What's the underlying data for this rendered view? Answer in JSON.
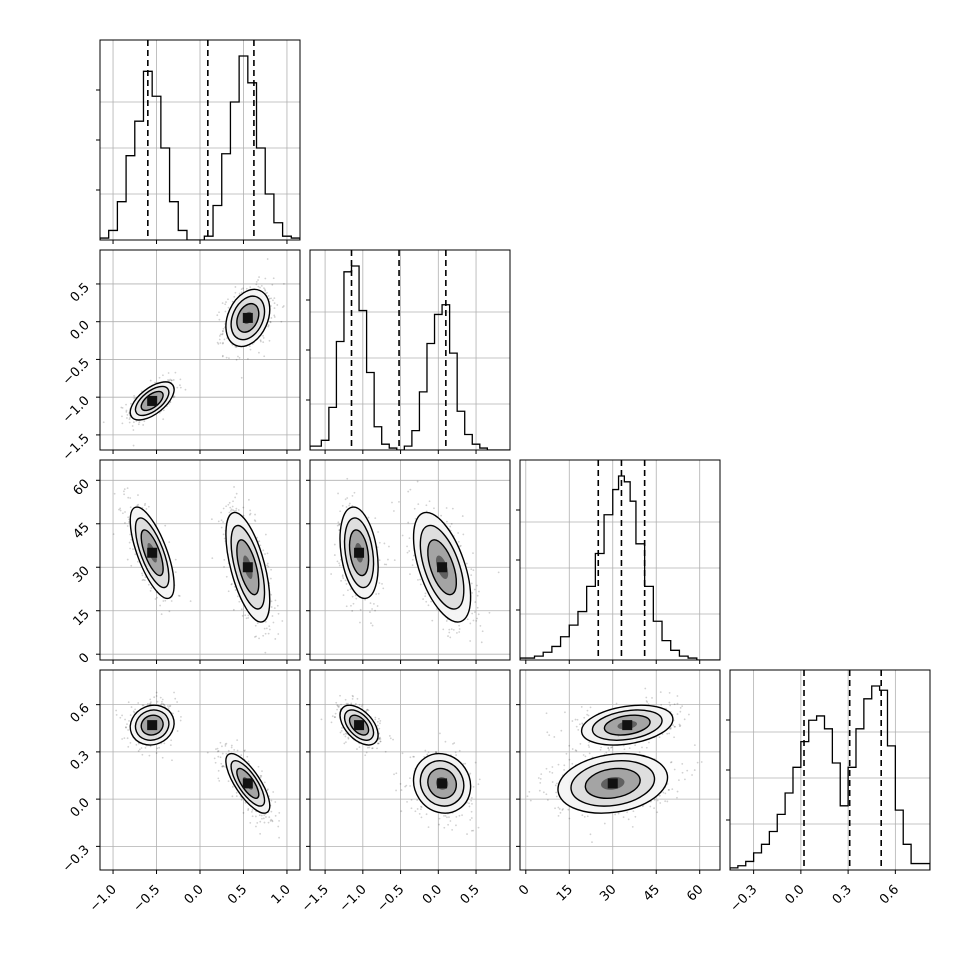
{
  "chart_data": {
    "type": "corner",
    "grid": true,
    "params": [
      {
        "id": "p1",
        "range": [
          -1.15,
          1.15
        ],
        "ticks": [
          -1.0,
          -0.5,
          0.0,
          0.5,
          1.0
        ],
        "tick_labels": [
          "−1.0",
          "−0.5",
          "0.0",
          "0.5",
          "1.0"
        ],
        "quantiles": [
          -0.6,
          0.09,
          0.62
        ],
        "hist_edges": [
          -1.15,
          -1.05,
          -0.95,
          -0.85,
          -0.75,
          -0.65,
          -0.6,
          -0.55,
          -0.45,
          -0.35,
          -0.25,
          -0.15,
          -0.05,
          0.05,
          0.15,
          0.25,
          0.35,
          0.45,
          0.55,
          0.62,
          0.65,
          0.75,
          0.85,
          0.95,
          1.05,
          1.15
        ],
        "hist_counts": [
          0.01,
          0.05,
          0.2,
          0.44,
          0.62,
          0.88,
          0.88,
          0.75,
          0.48,
          0.2,
          0.05,
          0.0,
          0.0,
          0.02,
          0.18,
          0.45,
          0.72,
          0.96,
          0.82,
          0.82,
          0.48,
          0.24,
          0.09,
          0.02,
          0.01
        ]
      },
      {
        "id": "p2",
        "range": [
          -1.7,
          0.95
        ],
        "ticks": [
          -1.5,
          -1.0,
          -0.5,
          0.0,
          0.5
        ],
        "tick_labels": [
          "−1.5",
          "−1.0",
          "−0.5",
          "0.0",
          "0.5"
        ],
        "quantiles": [
          -1.15,
          -0.52,
          0.1
        ],
        "hist_edges": [
          -1.7,
          -1.55,
          -1.45,
          -1.35,
          -1.25,
          -1.15,
          -1.05,
          -0.95,
          -0.85,
          -0.75,
          -0.65,
          -0.55,
          -0.45,
          -0.35,
          -0.25,
          -0.15,
          -0.05,
          0.05,
          0.15,
          0.25,
          0.35,
          0.45,
          0.55,
          0.65,
          0.8,
          0.95
        ],
        "hist_counts": [
          0.02,
          0.05,
          0.22,
          0.56,
          0.92,
          0.95,
          0.72,
          0.4,
          0.12,
          0.03,
          0.01,
          0.0,
          0.02,
          0.1,
          0.3,
          0.55,
          0.7,
          0.75,
          0.5,
          0.2,
          0.08,
          0.03,
          0.01,
          0.0,
          0.0
        ]
      },
      {
        "id": "p3",
        "range": [
          -2,
          67
        ],
        "ticks": [
          0,
          15,
          30,
          45,
          60
        ],
        "tick_labels": [
          "0",
          "15",
          "30",
          "45",
          "60"
        ],
        "quantiles": [
          25,
          33,
          41
        ],
        "hist_edges": [
          -2,
          3,
          6,
          9,
          12,
          15,
          18,
          21,
          24,
          27,
          30,
          32,
          34,
          36,
          38,
          41,
          44,
          47,
          50,
          53,
          56,
          59,
          62,
          67
        ],
        "hist_counts": [
          0.01,
          0.02,
          0.04,
          0.07,
          0.12,
          0.18,
          0.25,
          0.38,
          0.55,
          0.75,
          0.88,
          0.95,
          0.92,
          0.82,
          0.6,
          0.38,
          0.2,
          0.1,
          0.05,
          0.02,
          0.01,
          0.0,
          0.0
        ]
      },
      {
        "id": "p4",
        "range": [
          -0.45,
          0.82
        ],
        "ticks": [
          -0.3,
          0.0,
          0.3,
          0.6
        ],
        "tick_labels": [
          "−0.3",
          "0.0",
          "0.3",
          "0.6"
        ],
        "quantiles": [
          0.02,
          0.31,
          0.51
        ],
        "hist_edges": [
          -0.45,
          -0.4,
          -0.35,
          -0.3,
          -0.25,
          -0.2,
          -0.15,
          -0.1,
          -0.05,
          0.0,
          0.05,
          0.1,
          0.15,
          0.2,
          0.25,
          0.3,
          0.35,
          0.4,
          0.45,
          0.5,
          0.55,
          0.6,
          0.65,
          0.7,
          0.82
        ],
        "hist_counts": [
          0.01,
          0.02,
          0.04,
          0.08,
          0.12,
          0.18,
          0.26,
          0.36,
          0.48,
          0.6,
          0.7,
          0.72,
          0.66,
          0.5,
          0.3,
          0.48,
          0.66,
          0.8,
          0.86,
          0.84,
          0.58,
          0.28,
          0.12,
          0.03
        ]
      }
    ],
    "modes": [
      {
        "p1": -0.55,
        "p2": -1.05,
        "p3": 35,
        "p4": 0.47,
        "weight": 0.45
      },
      {
        "p1": 0.55,
        "p2": 0.05,
        "p3": 30,
        "p4": 0.1,
        "weight": 0.55
      }
    ]
  }
}
